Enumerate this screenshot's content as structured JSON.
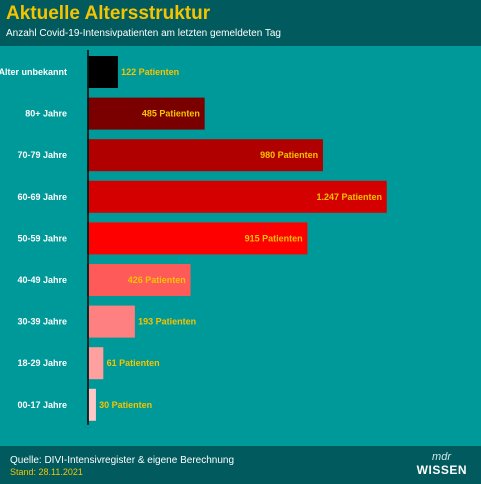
{
  "header": {
    "title": "Aktuelle Altersstruktur",
    "subtitle": "Anzahl Covid-19-Intensivpatienten am letzten gemeldeten Tag"
  },
  "footer": {
    "source": "Quelle: DIVI-Intensivregister & eigene Berechnung",
    "stand": "Stand: 28.11.2021",
    "logo_mdr": "mdr",
    "logo_wissen": "WISSEN"
  },
  "chart_data": {
    "type": "bar",
    "orientation": "horizontal",
    "title": "Aktuelle Altersstruktur",
    "subtitle": "Anzahl Covid-19-Intensivpatienten am letzten gemeldeten Tag",
    "categories": [
      "Alter unbekannt",
      "80+ Jahre",
      "70-79 Jahre",
      "60-69 Jahre",
      "50-59 Jahre",
      "40-49 Jahre",
      "30-39 Jahre",
      "18-29 Jahre",
      "00-17 Jahre"
    ],
    "values": [
      122,
      485,
      980,
      1247,
      915,
      426,
      193,
      61,
      30
    ],
    "value_labels": [
      "122 Patienten",
      "485 Patienten",
      "980 Patienten",
      "1.247 Patienten",
      "915 Patienten",
      "426 Patienten",
      "193 Patienten",
      "61 Patienten",
      "30 Patienten"
    ],
    "colors": [
      "#000000",
      "#7a0000",
      "#b00000",
      "#d40000",
      "#ff0000",
      "#ff5a5a",
      "#ff8080",
      "#ffa0a0",
      "#ffc8c8"
    ],
    "xlim": [
      0,
      1247
    ],
    "grid": false,
    "legend": "none"
  }
}
